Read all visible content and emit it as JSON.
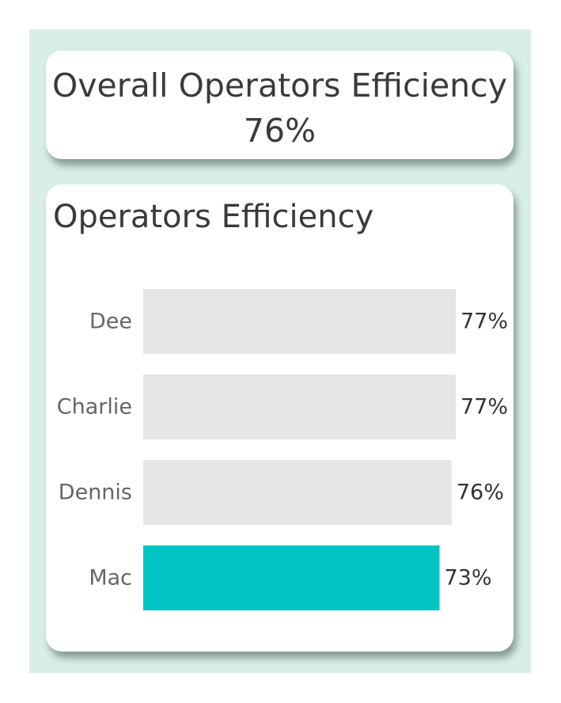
{
  "kpi": {
    "title": "Overall Operators Efficiency",
    "value": "76%"
  },
  "colors": {
    "panel_background": "#d8eee6",
    "bar_default": "#e6e6e6",
    "bar_highlight": "#00c5c5"
  },
  "chart_data": {
    "type": "bar",
    "orientation": "horizontal",
    "title": "Operators Efficiency",
    "categories": [
      "Dee",
      "Charlie",
      "Dennis",
      "Mac"
    ],
    "values": [
      77,
      77,
      76,
      73
    ],
    "data_labels": [
      "77%",
      "77%",
      "76%",
      "73%"
    ],
    "highlighted": [
      "Mac"
    ],
    "xlim": [
      0,
      100
    ],
    "grid": false,
    "legend": "none"
  }
}
